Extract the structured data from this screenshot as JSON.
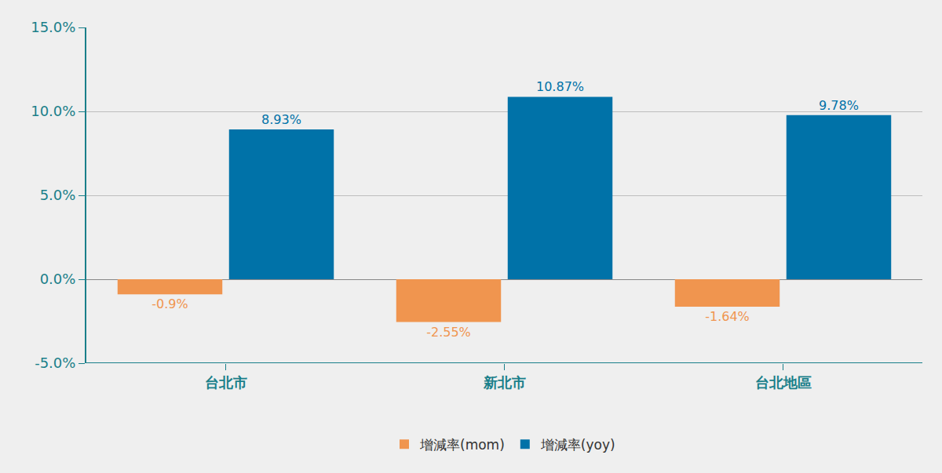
{
  "chart_data": {
    "type": "bar",
    "categories": [
      "台北市",
      "新北市",
      "台北地區"
    ],
    "series": [
      {
        "name": "增減率(mom)",
        "color": "#f0954f",
        "values": [
          -0.9,
          -2.55,
          -1.64
        ],
        "value_labels": [
          "-0.9%",
          "-2.55%",
          "-1.64%"
        ]
      },
      {
        "name": "增減率(yoy)",
        "color": "#0072a8",
        "values": [
          8.93,
          10.87,
          9.78
        ],
        "value_labels": [
          "8.93%",
          "10.87%",
          "9.78%"
        ]
      }
    ],
    "ylim": [
      -5,
      15
    ],
    "yticks": [
      {
        "value": -5,
        "label": "-5.0%"
      },
      {
        "value": 0,
        "label": "0.0%"
      },
      {
        "value": 5,
        "label": "5.0%"
      },
      {
        "value": 10,
        "label": "10.0%"
      },
      {
        "value": 15,
        "label": "15.0%"
      }
    ],
    "grid": true,
    "data_labels": true,
    "legend": "bottom"
  }
}
